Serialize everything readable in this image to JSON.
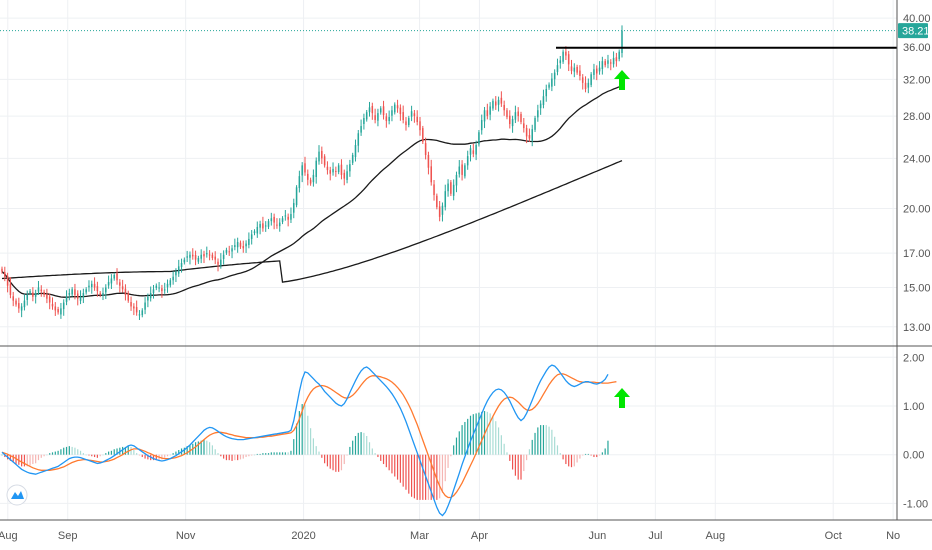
{
  "colors": {
    "up": "#26a69a",
    "down": "#ef5350",
    "ma": "#1a1a1a",
    "macd": "#2196f3",
    "signal": "#ff7a2f",
    "hist_up": "#26a69a",
    "hist_up_fade": "#a8dcd4",
    "hist_down": "#ef5350",
    "hist_down_fade": "#f5b5b3",
    "arrow": "#00e600",
    "grid": "#eef0f3",
    "price_line": "#26a69a"
  },
  "icons": {
    "logo": "tradingview-logo-icon",
    "arrow": "arrow-up-icon"
  },
  "chart_data": [
    {
      "type": "candlestick",
      "ylim": [
        12.3,
        41.5
      ],
      "log_scale": true,
      "y_ticks": [
        "40.00",
        "36.00",
        "32.00",
        "28.00",
        "24.00",
        "20.00",
        "17.00",
        "15.00",
        "13.00"
      ],
      "y_tick_values": [
        40,
        36,
        32,
        28,
        24,
        20,
        17,
        15,
        13
      ],
      "last_price": "38.21",
      "last_price_value": 38.21,
      "resistance_level": 35.9,
      "ohlc_start_date": "2019-07-29",
      "ohlc_note": "daily closes (approx.)",
      "closes": [
        15.9,
        15.6,
        15.1,
        14.6,
        14.3,
        14.1,
        13.9,
        14.0,
        14.3,
        14.6,
        14.8,
        14.5,
        14.7,
        15.0,
        14.8,
        14.6,
        14.4,
        14.2,
        14.0,
        13.8,
        13.7,
        13.9,
        14.2,
        14.5,
        14.7,
        14.9,
        14.6,
        14.4,
        14.5,
        14.7,
        14.9,
        15.1,
        15.2,
        15.0,
        14.8,
        14.6,
        14.7,
        15.0,
        15.3,
        15.5,
        15.7,
        15.4,
        15.1,
        14.9,
        14.6,
        14.3,
        14.0,
        13.9,
        13.7,
        13.6,
        13.8,
        14.2,
        14.5,
        14.7,
        14.9,
        15.1,
        15.0,
        14.8,
        14.9,
        15.2,
        15.4,
        15.6,
        15.9,
        16.2,
        16.4,
        16.6,
        16.8,
        16.9,
        16.8,
        16.6,
        16.7,
        16.9,
        16.8,
        17.0,
        16.9,
        16.7,
        16.6,
        16.3,
        16.6,
        16.9,
        17.2,
        17.1,
        17.3,
        17.5,
        17.7,
        17.4,
        17.3,
        17.6,
        17.9,
        18.2,
        18.4,
        18.7,
        18.9,
        18.6,
        18.8,
        19.1,
        19.3,
        19.0,
        18.8,
        19.0,
        19.3,
        19.5,
        19.2,
        19.6,
        20.4,
        21.6,
        22.5,
        23.4,
        22.8,
        22.2,
        21.9,
        22.6,
        23.8,
        24.6,
        24.0,
        23.4,
        23.0,
        22.7,
        23.1,
        22.9,
        23.4,
        22.6,
        22.3,
        22.9,
        23.5,
        24.3,
        25.2,
        26.3,
        27.0,
        27.8,
        28.4,
        28.9,
        28.3,
        27.6,
        28.3,
        28.8,
        28.1,
        27.5,
        27.9,
        28.6,
        29.2,
        28.8,
        28.2,
        27.6,
        27.1,
        27.8,
        28.5,
        28.0,
        27.4,
        26.6,
        25.5,
        24.3,
        23.2,
        22.0,
        21.0,
        20.1,
        19.4,
        20.2,
        21.3,
        21.9,
        21.1,
        21.8,
        22.6,
        23.3,
        22.6,
        23.4,
        24.2,
        24.9,
        24.4,
        25.2,
        26.4,
        27.6,
        28.6,
        28.0,
        29.0,
        29.6,
        29.1,
        29.7,
        29.3,
        28.6,
        27.9,
        27.2,
        27.7,
        28.4,
        28.0,
        27.4,
        26.8,
        26.0,
        25.8,
        26.7,
        27.8,
        28.6,
        29.3,
        30.1,
        30.9,
        31.4,
        32.1,
        32.8,
        33.7,
        34.3,
        35.4,
        34.9,
        33.8,
        33.0,
        33.4,
        32.8,
        32.4,
        31.6,
        30.9,
        31.6,
        32.6,
        33.2,
        32.7,
        33.4,
        34.2,
        33.7,
        34.3,
        33.9,
        34.6,
        34.2,
        35.4,
        38.2
      ]
    },
    {
      "type": "line",
      "series": [
        {
          "name": "",
          "role": "ma50"
        },
        {
          "name": "",
          "role": "ma200"
        }
      ]
    },
    {
      "type": "macd",
      "ylim": [
        -1.3,
        2.15
      ],
      "y_ticks": [
        "2.00",
        "1.00",
        "0.00",
        "-1.00"
      ],
      "y_tick_values": [
        2,
        1,
        0,
        -1
      ],
      "macd": [
        0.05,
        0.0,
        -0.05,
        -0.1,
        -0.15,
        -0.2,
        -0.25,
        -0.3,
        -0.33,
        -0.36,
        -0.38,
        -0.39,
        -0.4,
        -0.38,
        -0.36,
        -0.34,
        -0.32,
        -0.3,
        -0.28,
        -0.26,
        -0.24,
        -0.2,
        -0.16,
        -0.12,
        -0.08,
        -0.06,
        -0.05,
        -0.05,
        -0.06,
        -0.08,
        -0.1,
        -0.12,
        -0.14,
        -0.16,
        -0.18,
        -0.17,
        -0.15,
        -0.12,
        -0.09,
        -0.06,
        -0.02,
        0.02,
        0.06,
        0.1,
        0.14,
        0.18,
        0.2,
        0.18,
        0.14,
        0.1,
        0.06,
        0.02,
        -0.02,
        -0.05,
        -0.08,
        -0.1,
        -0.12,
        -0.13,
        -0.12,
        -0.1,
        -0.08,
        -0.05,
        -0.02,
        0.02,
        0.06,
        0.1,
        0.15,
        0.2,
        0.26,
        0.32,
        0.38,
        0.44,
        0.5,
        0.54,
        0.56,
        0.55,
        0.52,
        0.48,
        0.44,
        0.4,
        0.37,
        0.35,
        0.33,
        0.32,
        0.31,
        0.31,
        0.31,
        0.32,
        0.33,
        0.34,
        0.35,
        0.36,
        0.37,
        0.38,
        0.39,
        0.4,
        0.41,
        0.42,
        0.43,
        0.44,
        0.45,
        0.46,
        0.47,
        0.5,
        0.7,
        1.0,
        1.3,
        1.55,
        1.7,
        1.68,
        1.62,
        1.56,
        1.5,
        1.45,
        1.38,
        1.3,
        1.24,
        1.18,
        1.12,
        1.06,
        1.02,
        1.0,
        1.05,
        1.15,
        1.28,
        1.4,
        1.52,
        1.63,
        1.72,
        1.78,
        1.8,
        1.76,
        1.7,
        1.64,
        1.58,
        1.52,
        1.46,
        1.4,
        1.33,
        1.25,
        1.16,
        1.06,
        0.95,
        0.82,
        0.68,
        0.52,
        0.36,
        0.2,
        0.04,
        -0.12,
        -0.28,
        -0.44,
        -0.6,
        -0.76,
        -0.92,
        -1.08,
        -1.2,
        -1.25,
        -1.18,
        -1.05,
        -0.9,
        -0.72,
        -0.55,
        -0.38,
        -0.2,
        -0.04,
        0.12,
        0.28,
        0.42,
        0.56,
        0.7,
        0.84,
        0.98,
        1.1,
        1.2,
        1.28,
        1.33,
        1.35,
        1.33,
        1.28,
        1.2,
        1.1,
        0.98,
        0.86,
        0.76,
        0.7,
        0.75,
        0.85,
        0.98,
        1.12,
        1.26,
        1.4,
        1.52,
        1.62,
        1.72,
        1.8,
        1.84,
        1.82,
        1.76,
        1.68,
        1.6,
        1.52,
        1.46,
        1.42,
        1.4,
        1.42,
        1.45,
        1.48,
        1.5,
        1.5,
        1.48,
        1.46,
        1.45,
        1.47,
        1.5,
        1.55,
        1.65
      ],
      "signal": [
        0.05,
        0.03,
        0.01,
        -0.02,
        -0.05,
        -0.08,
        -0.12,
        -0.15,
        -0.18,
        -0.21,
        -0.24,
        -0.27,
        -0.29,
        -0.31,
        -0.32,
        -0.32,
        -0.32,
        -0.32,
        -0.31,
        -0.3,
        -0.29,
        -0.27,
        -0.25,
        -0.22,
        -0.19,
        -0.16,
        -0.14,
        -0.12,
        -0.11,
        -0.1,
        -0.1,
        -0.11,
        -0.12,
        -0.13,
        -0.14,
        -0.15,
        -0.15,
        -0.14,
        -0.13,
        -0.11,
        -0.09,
        -0.06,
        -0.03,
        0.0,
        0.04,
        0.07,
        0.1,
        0.12,
        0.12,
        0.11,
        0.09,
        0.07,
        0.04,
        0.02,
        -0.01,
        -0.03,
        -0.05,
        -0.07,
        -0.08,
        -0.08,
        -0.08,
        -0.07,
        -0.06,
        -0.04,
        -0.02,
        0.01,
        0.04,
        0.08,
        0.12,
        0.16,
        0.21,
        0.26,
        0.31,
        0.36,
        0.4,
        0.43,
        0.45,
        0.46,
        0.46,
        0.45,
        0.44,
        0.42,
        0.41,
        0.39,
        0.38,
        0.37,
        0.36,
        0.35,
        0.35,
        0.35,
        0.35,
        0.35,
        0.36,
        0.36,
        0.37,
        0.38,
        0.38,
        0.39,
        0.4,
        0.41,
        0.42,
        0.43,
        0.44,
        0.45,
        0.5,
        0.6,
        0.74,
        0.9,
        1.06,
        1.18,
        1.28,
        1.35,
        1.39,
        1.41,
        1.42,
        1.41,
        1.39,
        1.36,
        1.32,
        1.28,
        1.24,
        1.2,
        1.17,
        1.16,
        1.18,
        1.22,
        1.28,
        1.35,
        1.43,
        1.5,
        1.56,
        1.6,
        1.62,
        1.62,
        1.61,
        1.6,
        1.58,
        1.56,
        1.53,
        1.49,
        1.44,
        1.38,
        1.31,
        1.23,
        1.13,
        1.02,
        0.9,
        0.76,
        0.62,
        0.46,
        0.3,
        0.14,
        -0.02,
        -0.18,
        -0.34,
        -0.5,
        -0.64,
        -0.76,
        -0.84,
        -0.88,
        -0.88,
        -0.84,
        -0.77,
        -0.68,
        -0.58,
        -0.46,
        -0.34,
        -0.22,
        -0.1,
        0.03,
        0.16,
        0.29,
        0.42,
        0.55,
        0.67,
        0.79,
        0.9,
        1.0,
        1.08,
        1.14,
        1.17,
        1.18,
        1.17,
        1.13,
        1.08,
        1.02,
        0.96,
        0.92,
        0.91,
        0.93,
        0.98,
        1.05,
        1.14,
        1.24,
        1.34,
        1.44,
        1.52,
        1.59,
        1.64,
        1.66,
        1.66,
        1.64,
        1.61,
        1.58,
        1.55,
        1.52,
        1.5,
        1.49,
        1.49,
        1.49,
        1.49,
        1.49,
        1.48,
        1.48,
        1.47,
        1.47,
        1.47,
        1.48,
        1.49,
        1.5
      ]
    }
  ],
  "x_axis": {
    "labels": [
      "Aug",
      "Sep",
      "Nov",
      "2020",
      "Mar",
      "Apr",
      "Jun",
      "Jul",
      "Aug",
      "Oct",
      "No"
    ],
    "label_dates": [
      "2019-08-01",
      "2019-09-01",
      "2019-11-01",
      "2020-01-01",
      "2020-03-01",
      "2020-04-01",
      "2020-06-01",
      "2020-07-01",
      "2020-08-01",
      "2020-10-01",
      "2020-11-01"
    ],
    "end_date": "2020-11-03"
  }
}
